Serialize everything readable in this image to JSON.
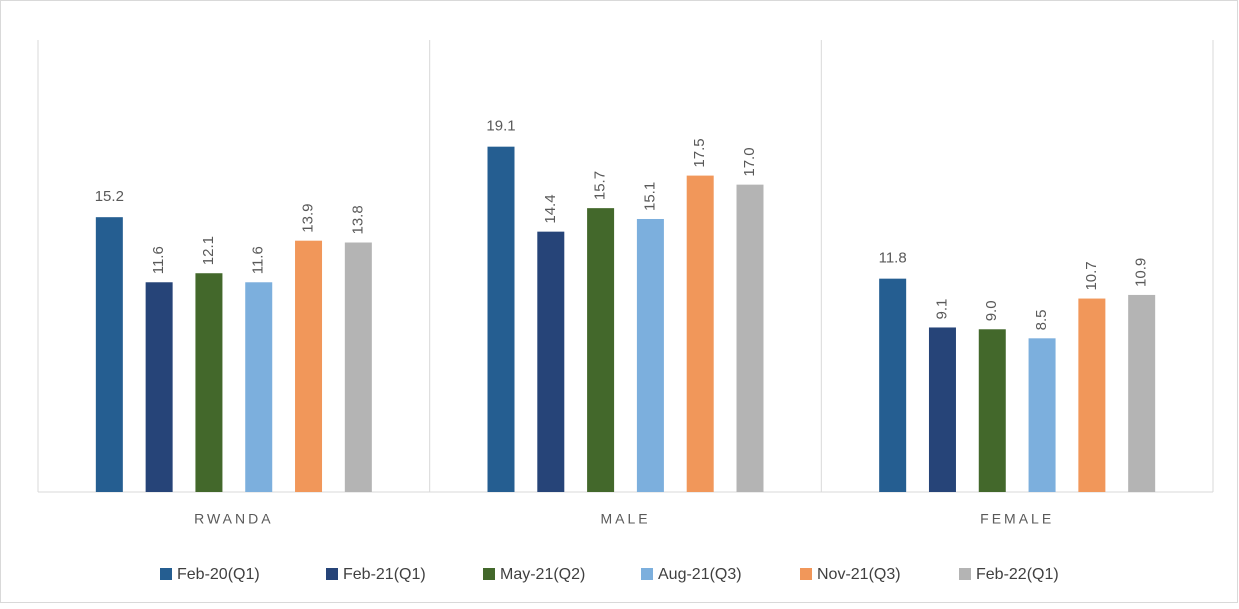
{
  "chart_data": {
    "type": "bar",
    "categories": [
      "RWANDA",
      "MALE",
      "FEMALE"
    ],
    "ylim": [
      0,
      25
    ],
    "series": [
      {
        "name": "Feb-20(Q1)",
        "color": "#255e91",
        "values": [
          15.2,
          19.1,
          11.8
        ],
        "value_labels": [
          "15.2",
          "19.1",
          "11.8"
        ]
      },
      {
        "name": "Feb-21(Q1)",
        "color": "#264478",
        "values": [
          11.6,
          14.4,
          9.1
        ],
        "value_labels": [
          "11.6",
          "14.4",
          "9.1"
        ]
      },
      {
        "name": "May-21(Q2)",
        "color": "#43682b",
        "values": [
          12.1,
          15.7,
          9.0
        ],
        "value_labels": [
          "12.1",
          "15.7",
          "9.0"
        ]
      },
      {
        "name": "Aug-21(Q3)",
        "color": "#7cafdd",
        "values": [
          11.6,
          15.1,
          8.5
        ],
        "value_labels": [
          "11.6",
          "15.1",
          "8.5"
        ]
      },
      {
        "name": "Nov-21(Q3)",
        "color": "#f1975a",
        "values": [
          13.9,
          17.5,
          10.7
        ],
        "value_labels": [
          "13.9",
          "17.5",
          "10.7"
        ]
      },
      {
        "name": "Feb-22(Q1)",
        "color": "#b4b4b4",
        "values": [
          13.8,
          17.0,
          10.9
        ],
        "value_labels": [
          "13.8",
          "17.0",
          "10.9"
        ]
      }
    ]
  }
}
